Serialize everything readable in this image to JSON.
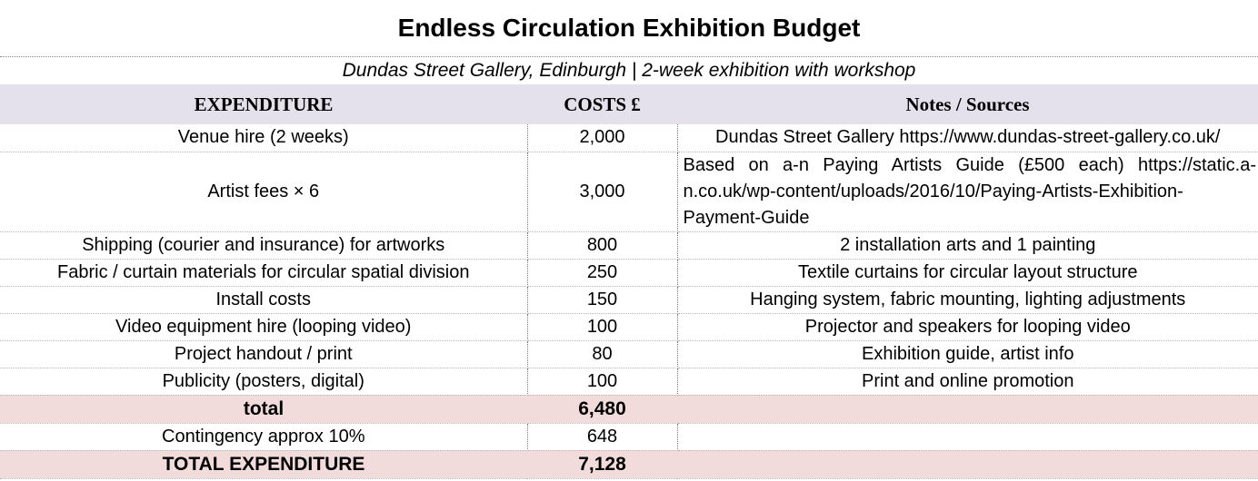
{
  "title": "Endless Circulation Exhibition Budget",
  "subtitle": "Dundas Street Gallery, Edinburgh | 2-week exhibition with workshop",
  "headers": {
    "expenditure": "EXPENDITURE",
    "costs": "COSTS £",
    "notes": "Notes / Sources"
  },
  "rows": [
    {
      "item": "Venue hire (2 weeks)",
      "cost": "2,000",
      "note": "Dundas Street Gallery https://www.dundas-street-gallery.co.uk/"
    },
    {
      "item": "Artist fees × 6",
      "cost": "3,000",
      "note": "Based on a-n Paying Artists Guide (£500 each) https://static.a-n.co.uk/wp-content/uploads/2016/10/Paying-Artists-Exhibition-Payment-Guide"
    },
    {
      "item": "Shipping (courier and insurance) for artworks",
      "cost": "800",
      "note": "2 installation arts and 1 painting"
    },
    {
      "item": "Fabric / curtain materials for circular spatial division",
      "cost": "250",
      "note": "Textile curtains for circular layout structure"
    },
    {
      "item": "Install costs",
      "cost": "150",
      "note": "Hanging system, fabric mounting, lighting adjustments"
    },
    {
      "item": "Video equipment hire (looping video)",
      "cost": "100",
      "note": "Projector and speakers for looping video"
    },
    {
      "item": "Project handout / print",
      "cost": "80",
      "note": "Exhibition guide, artist info"
    },
    {
      "item": "Publicity (posters, digital)",
      "cost": "100",
      "note": "Print and online promotion"
    }
  ],
  "total": {
    "label": "total",
    "value": "6,480"
  },
  "contingency": {
    "label": "Contingency approx 10%",
    "value": "648"
  },
  "grand_total": {
    "label": "TOTAL EXPENDITURE",
    "value": "7,128"
  }
}
